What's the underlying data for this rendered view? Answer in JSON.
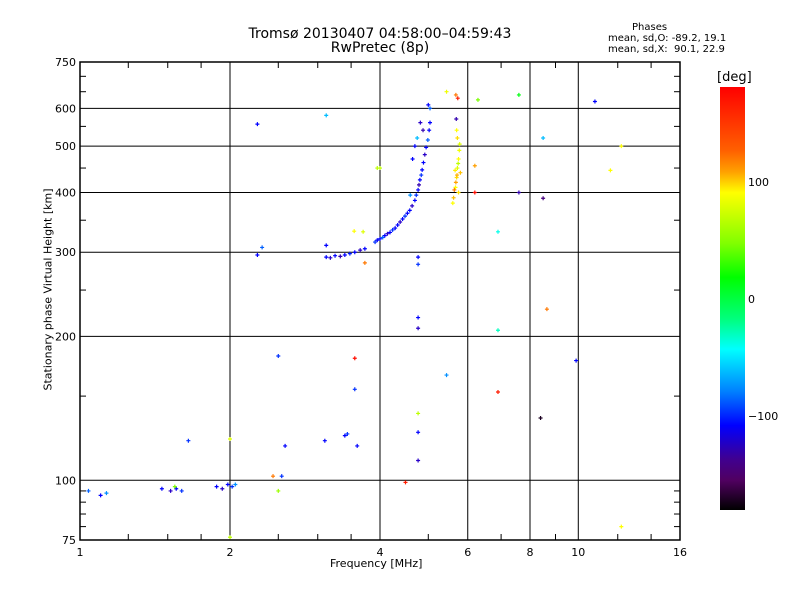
{
  "header": {
    "title": "Tromsø 20130407 04:58:00–04:59:43",
    "subtitle": "RwPretec (8p)",
    "stats_heading": "Phases",
    "stats_o": "mean, sd,O: -89.2, 19.1",
    "stats_x": "mean, sd,X:  90.1, 22.9"
  },
  "colorbar": {
    "unit": "[deg]",
    "range": [
      -180,
      180
    ],
    "ticks": [
      "100",
      "0",
      "−100"
    ],
    "tick_values": [
      100,
      0,
      -100
    ]
  },
  "chart_data": {
    "type": "scatter",
    "title": "Tromsø 20130407 04:58:00–04:59:43",
    "xlabel": "Frequency [MHz]",
    "ylabel": "Stationary phase Virtual Height [km]",
    "xscale": "log",
    "yscale": "log",
    "xlim": [
      1,
      16
    ],
    "ylim": [
      75,
      750
    ],
    "grid": true,
    "xticks": [
      1,
      2,
      4,
      6,
      8,
      10,
      16
    ],
    "xtick_labels": [
      "1",
      "2",
      "4",
      "6",
      "8",
      "10",
      "16"
    ],
    "yticks": [
      75,
      100,
      200,
      300,
      400,
      500,
      600,
      750
    ],
    "ytick_labels": [
      "75",
      "100",
      "200",
      "300",
      "400",
      "500",
      "600",
      "750"
    ],
    "color_by": "phase_deg",
    "points": [
      [
        3.12,
        293,
        -100
      ],
      [
        3.18,
        292,
        -110
      ],
      [
        3.25,
        295,
        -100
      ],
      [
        3.33,
        294,
        -120
      ],
      [
        3.4,
        296,
        -100
      ],
      [
        3.48,
        298,
        -95
      ],
      [
        3.56,
        300,
        -100
      ],
      [
        3.65,
        303,
        -110
      ],
      [
        3.73,
        305,
        -100
      ],
      [
        3.91,
        315,
        -90
      ],
      [
        3.95,
        318,
        -100
      ],
      [
        4.0,
        320,
        -100
      ],
      [
        4.05,
        322,
        -80
      ],
      [
        4.09,
        325,
        -100
      ],
      [
        4.14,
        328,
        -110
      ],
      [
        4.19,
        330,
        -100
      ],
      [
        4.24,
        334,
        -90
      ],
      [
        4.29,
        337,
        -100
      ],
      [
        4.34,
        342,
        -100
      ],
      [
        4.39,
        347,
        -110
      ],
      [
        4.44,
        352,
        -100
      ],
      [
        4.49,
        357,
        -90
      ],
      [
        4.54,
        362,
        -100
      ],
      [
        4.59,
        367,
        -100
      ],
      [
        4.64,
        375,
        -110
      ],
      [
        4.7,
        385,
        -100
      ],
      [
        4.73,
        395,
        -90
      ],
      [
        4.77,
        405,
        -100
      ],
      [
        4.79,
        415,
        -120
      ],
      [
        4.81,
        425,
        -100
      ],
      [
        4.84,
        435,
        -90
      ],
      [
        4.86,
        446,
        -100
      ],
      [
        4.89,
        462,
        -100
      ],
      [
        4.92,
        480,
        -110
      ],
      [
        4.95,
        497,
        -100
      ],
      [
        4.99,
        515,
        -80
      ],
      [
        5.02,
        540,
        -100
      ],
      [
        5.04,
        560,
        -100
      ],
      [
        5.04,
        600,
        -80
      ],
      [
        5.0,
        610,
        -100
      ],
      [
        4.82,
        560,
        -110
      ],
      [
        4.7,
        500,
        -100
      ],
      [
        4.75,
        520,
        -60
      ],
      [
        4.65,
        470,
        -100
      ],
      [
        4.88,
        540,
        -120
      ],
      [
        4.6,
        395,
        -70
      ],
      [
        5.62,
        390,
        120
      ],
      [
        5.67,
        410,
        100
      ],
      [
        5.7,
        430,
        110
      ],
      [
        5.72,
        450,
        90
      ],
      [
        5.75,
        470,
        100
      ],
      [
        5.77,
        490,
        95
      ],
      [
        5.72,
        520,
        110
      ],
      [
        5.7,
        540,
        100
      ],
      [
        5.68,
        420,
        130
      ],
      [
        5.75,
        400,
        110
      ],
      [
        5.6,
        380,
        100
      ],
      [
        5.8,
        440,
        120
      ],
      [
        5.74,
        460,
        80
      ],
      [
        5.66,
        445,
        105
      ],
      [
        5.78,
        505,
        90
      ],
      [
        5.64,
        405,
        140
      ],
      [
        5.71,
        435,
        125
      ],
      [
        5.69,
        570,
        -120
      ],
      [
        5.73,
        630,
        170
      ],
      [
        1.04,
        95,
        -80
      ],
      [
        1.1,
        93,
        -100
      ],
      [
        1.13,
        94,
        -70
      ],
      [
        1.46,
        96,
        -100
      ],
      [
        1.52,
        95,
        -110
      ],
      [
        1.56,
        96,
        -100
      ],
      [
        1.6,
        95,
        -90
      ],
      [
        1.55,
        97,
        60
      ],
      [
        1.65,
        121,
        -90
      ],
      [
        1.88,
        97,
        -100
      ],
      [
        1.93,
        96,
        -110
      ],
      [
        1.98,
        98,
        -100
      ],
      [
        2.02,
        97,
        -90
      ],
      [
        2.05,
        98,
        -70
      ],
      [
        2.0,
        122,
        90
      ],
      [
        2.0,
        76,
        80
      ],
      [
        2.58,
        118,
        -100
      ],
      [
        2.54,
        102,
        -90
      ],
      [
        2.44,
        102,
        140
      ],
      [
        2.5,
        95,
        70
      ],
      [
        2.27,
        556,
        -100
      ],
      [
        2.27,
        296,
        -100
      ],
      [
        2.32,
        307,
        -80
      ],
      [
        2.5,
        182,
        -90
      ],
      [
        3.12,
        580,
        -60
      ],
      [
        3.12,
        310,
        -100
      ],
      [
        3.1,
        121,
        -100
      ],
      [
        3.4,
        124,
        -100
      ],
      [
        3.44,
        125,
        -90
      ],
      [
        3.56,
        180,
        175
      ],
      [
        3.56,
        155,
        -90
      ],
      [
        3.6,
        118,
        -100
      ],
      [
        3.7,
        331,
        90
      ],
      [
        3.73,
        285,
        140
      ],
      [
        3.95,
        450,
        80
      ],
      [
        3.55,
        332,
        100
      ],
      [
        4.5,
        99,
        170
      ],
      [
        4.77,
        293,
        -100
      ],
      [
        4.77,
        283,
        -90
      ],
      [
        4.77,
        219,
        -100
      ],
      [
        4.77,
        208,
        -110
      ],
      [
        4.77,
        138,
        80
      ],
      [
        4.77,
        126,
        -100
      ],
      [
        4.77,
        110,
        -110
      ],
      [
        5.44,
        166,
        -70
      ],
      [
        6.29,
        625,
        60
      ],
      [
        7.6,
        640,
        20
      ],
      [
        7.6,
        400,
        -120
      ],
      [
        6.9,
        331,
        -40
      ],
      [
        6.9,
        206,
        -30
      ],
      [
        6.9,
        153,
        170
      ],
      [
        8.5,
        520,
        -60
      ],
      [
        8.5,
        389,
        -140
      ],
      [
        8.65,
        228,
        140
      ],
      [
        8.4,
        135,
        -170
      ],
      [
        9.9,
        178,
        -100
      ],
      [
        10.8,
        620,
        -100
      ],
      [
        11.6,
        445,
        100
      ],
      [
        12.2,
        500,
        100
      ],
      [
        12.2,
        80,
        100
      ],
      [
        6.2,
        400,
        175
      ],
      [
        6.2,
        455,
        130
      ],
      [
        5.68,
        640,
        140
      ],
      [
        5.44,
        650,
        95
      ],
      [
        4.0,
        450,
        80
      ]
    ]
  }
}
